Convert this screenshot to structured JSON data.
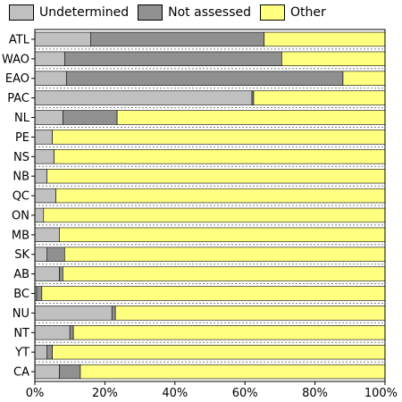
{
  "chart_data": {
    "type": "bar",
    "orientation": "horizontal",
    "stacked": true,
    "normalized": true,
    "categories": [
      "ATL",
      "WAO",
      "EAO",
      "PAC",
      "NL",
      "PE",
      "NS",
      "NB",
      "QC",
      "ON",
      "MB",
      "SK",
      "AB",
      "BC",
      "NU",
      "NT",
      "YT",
      "CA"
    ],
    "series": [
      {
        "name": "Undetermined",
        "color": "#c0c0c0",
        "values": [
          16,
          8.5,
          9,
          62,
          8,
          5,
          5.5,
          3.5,
          6,
          2.5,
          7,
          3.5,
          7,
          0.5,
          22,
          10,
          3.5,
          7
        ]
      },
      {
        "name": "Not assessed",
        "color": "#909090",
        "values": [
          49.5,
          62,
          79,
          0.5,
          15.5,
          0,
          0,
          0,
          0,
          0,
          0,
          5,
          1,
          1.5,
          1,
          1,
          1.5,
          6
        ]
      },
      {
        "name": "Other",
        "color": "#ffff80",
        "values": [
          34.5,
          29.5,
          12,
          37.5,
          76.5,
          95,
          94.5,
          96.5,
          94,
          97.5,
          93,
          91.5,
          92,
          98,
          77,
          89,
          95,
          87
        ]
      }
    ],
    "x_ticks": [
      "0%",
      "20%",
      "40%",
      "60%",
      "80%",
      "100%"
    ],
    "xlim": [
      0,
      100
    ],
    "legend_position": "top",
    "grid": "horizontal dashed row separators"
  }
}
